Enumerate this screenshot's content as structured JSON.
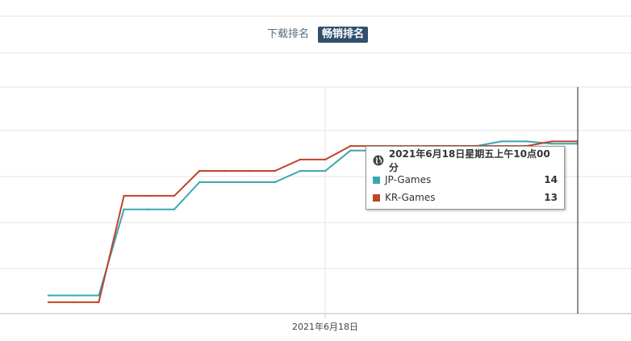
{
  "toggle": {
    "download_label": "下载排名",
    "grossing_label": "畅销排名"
  },
  "tooltip": {
    "title": "2021年6月18日星期五上午10点00分",
    "rows": [
      {
        "name": "JP-Games",
        "value": "14",
        "color": "#3aa8b0"
      },
      {
        "name": "KR-Games",
        "value": "13",
        "color": "#c0432b"
      }
    ]
  },
  "chart_data": {
    "type": "line",
    "x_tick_label": "2021年6月18日",
    "y_axis": "rank (inverted)",
    "ylim": [
      5,
      55
    ],
    "grid": true,
    "series": [
      {
        "name": "JP-Games",
        "color": "#3aa8b0",
        "values": [
          51,
          51,
          51,
          32,
          32,
          32,
          26,
          26,
          26,
          26,
          23.5,
          23.5,
          19,
          19,
          19,
          18,
          18,
          18,
          17,
          17,
          17.5,
          17.5
        ]
      },
      {
        "name": "KR-Games",
        "color": "#c0432b",
        "values": [
          52.5,
          52.5,
          52.5,
          29,
          29,
          29,
          23.5,
          23.5,
          23.5,
          23.5,
          21,
          21,
          18,
          18,
          18,
          18,
          18,
          18,
          18,
          18,
          17,
          17
        ]
      }
    ]
  }
}
